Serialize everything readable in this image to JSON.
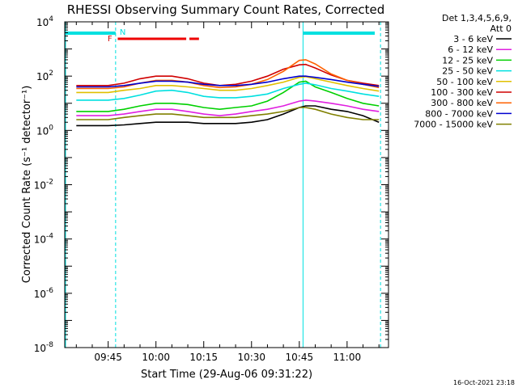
{
  "chart_data": {
    "type": "line",
    "title": "RHESSI Observing Summary Count Rates, Corrected",
    "xlabel": "Start Time (29-Aug-06 09:31:22)",
    "ylabel": "Corrected Count Rate (s⁻¹ detector⁻¹)",
    "xlim": [
      "09:31:22",
      "11:13:00"
    ],
    "ylim": [
      1e-08,
      10000
    ],
    "yscale": "log",
    "x_ticks": [
      "09:45",
      "10:00",
      "10:15",
      "10:30",
      "10:45",
      "11:00"
    ],
    "y_ticks": [
      {
        "value": 1e-08,
        "label": "10",
        "exp": "-8"
      },
      {
        "value": 1e-06,
        "label": "10",
        "exp": "-6"
      },
      {
        "value": 0.0001,
        "label": "10",
        "exp": "-4"
      },
      {
        "value": 0.01,
        "label": "10",
        "exp": "-2"
      },
      {
        "value": 1,
        "label": "10",
        "exp": "0"
      },
      {
        "value": 100,
        "label": "10",
        "exp": "2"
      },
      {
        "value": 10000,
        "label": "10",
        "exp": "4"
      }
    ],
    "legend_position": "right",
    "legend_header": [
      "Det 1,3,4,5,6,9,",
      "Att 0"
    ],
    "x": [
      "09:35",
      "09:40",
      "09:45",
      "09:50",
      "09:55",
      "10:00",
      "10:05",
      "10:10",
      "10:15",
      "10:20",
      "10:25",
      "10:30",
      "10:35",
      "10:40",
      "10:45",
      "10:47",
      "10:50",
      "10:55",
      "11:00",
      "11:05",
      "11:10"
    ],
    "series": [
      {
        "name": "3 - 6 keV",
        "color": "#000000",
        "values": [
          1.5,
          1.5,
          1.5,
          1.6,
          1.8,
          2,
          2,
          2,
          1.8,
          1.8,
          1.8,
          2,
          2.5,
          4,
          7,
          8,
          8,
          6,
          5,
          3.5,
          2
        ]
      },
      {
        "name": "6 - 12 keV",
        "color": "#e020e0",
        "values": [
          3.5,
          3.5,
          3.5,
          4,
          5,
          6,
          6,
          5,
          4,
          3.5,
          4,
          5,
          6,
          8,
          12,
          13,
          12,
          10,
          8,
          6,
          5
        ]
      },
      {
        "name": "12 - 25 keV",
        "color": "#00d000",
        "values": [
          5,
          5,
          5,
          6,
          8,
          10,
          10,
          9,
          7,
          6,
          7,
          8,
          12,
          25,
          60,
          65,
          40,
          25,
          15,
          10,
          8
        ]
      },
      {
        "name": "25 - 50 keV",
        "color": "#00e0e0",
        "values": [
          13,
          13,
          13,
          15,
          20,
          28,
          30,
          25,
          18,
          16,
          16,
          18,
          22,
          35,
          50,
          55,
          48,
          35,
          28,
          22,
          18
        ]
      },
      {
        "name": "50 - 100 keV",
        "color": "#e0c000",
        "values": [
          25,
          25,
          25,
          30,
          35,
          45,
          45,
          40,
          35,
          30,
          30,
          35,
          45,
          60,
          90,
          95,
          80,
          60,
          45,
          35,
          28
        ]
      },
      {
        "name": "100 - 300 keV",
        "color": "#d00000",
        "values": [
          45,
          45,
          45,
          55,
          80,
          100,
          100,
          80,
          55,
          45,
          50,
          65,
          100,
          180,
          260,
          270,
          200,
          110,
          70,
          55,
          45
        ]
      },
      {
        "name": "300 - 800 keV",
        "color": "#ff6000",
        "values": [
          35,
          35,
          35,
          40,
          55,
          70,
          70,
          60,
          45,
          38,
          40,
          50,
          75,
          150,
          380,
          400,
          280,
          120,
          70,
          50,
          38
        ]
      },
      {
        "name": "800 - 7000 keV",
        "color": "#0000d0",
        "values": [
          40,
          40,
          40,
          45,
          55,
          65,
          65,
          60,
          50,
          45,
          45,
          50,
          60,
          80,
          100,
          100,
          90,
          75,
          60,
          50,
          42
        ]
      },
      {
        "name": "7000 - 15000 keV",
        "color": "#808000",
        "values": [
          2.5,
          2.5,
          2.5,
          3,
          3.5,
          4,
          4,
          3.5,
          3,
          3,
          3,
          3.5,
          4,
          5,
          7,
          7,
          6,
          4,
          3,
          2.5,
          2.5
        ]
      }
    ],
    "annotations": {
      "night_label": "N",
      "flare_label": "F",
      "footer_timestamp": "16-Oct-2021 23:18"
    }
  }
}
